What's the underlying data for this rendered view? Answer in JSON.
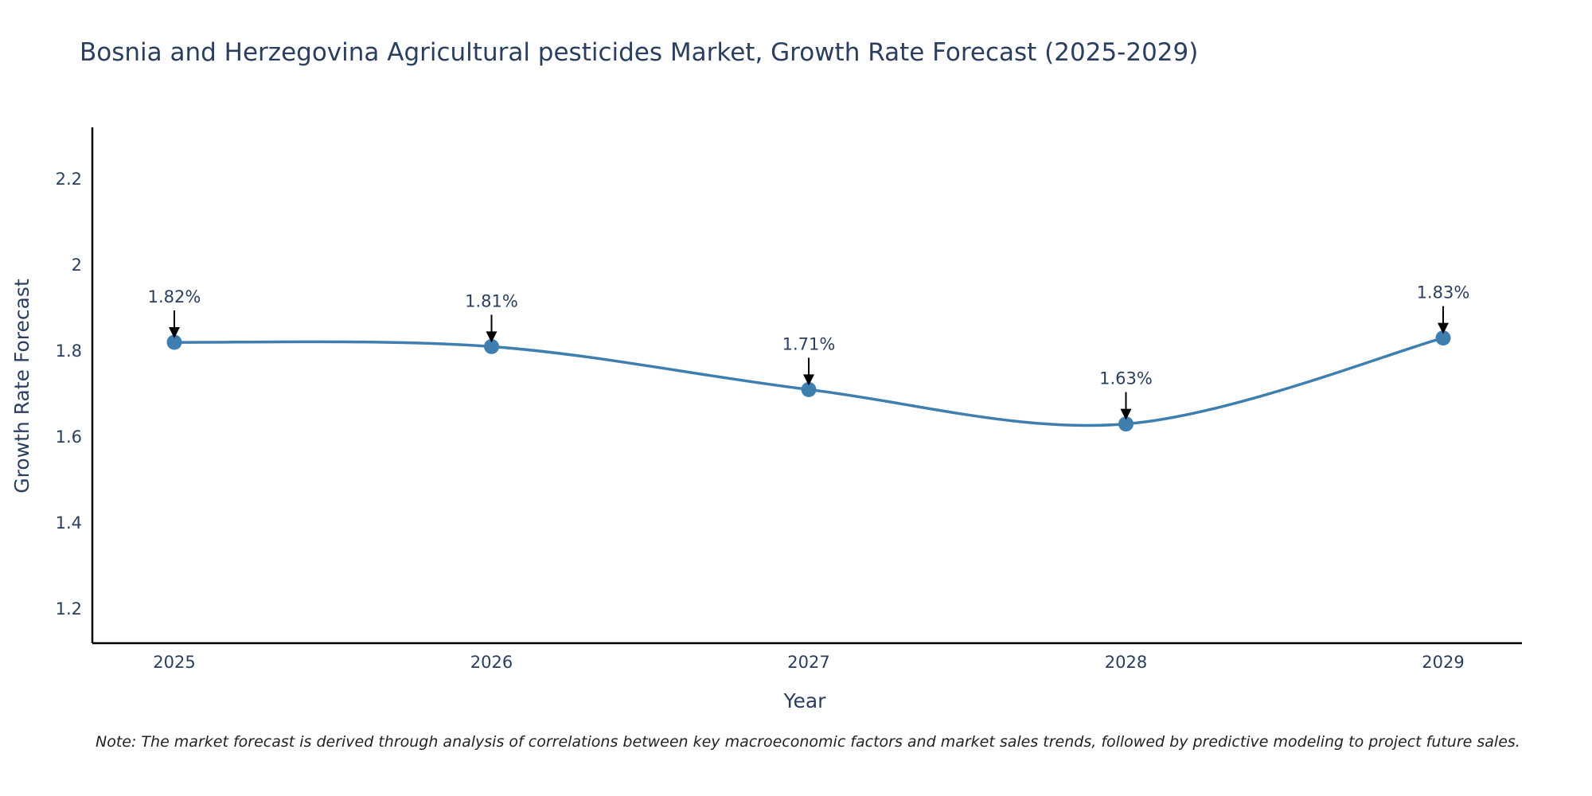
{
  "chart_data": {
    "type": "line",
    "title": "Bosnia and Herzegovina Agricultural pesticides Market, Growth Rate Forecast (2025-2029)",
    "xlabel": "Year",
    "ylabel": "Growth Rate Forecast",
    "categories": [
      "2025",
      "2026",
      "2027",
      "2028",
      "2029"
    ],
    "values": [
      1.82,
      1.81,
      1.71,
      1.63,
      1.83
    ],
    "data_labels": [
      "1.82%",
      "1.81%",
      "1.71%",
      "1.63%",
      "1.83%"
    ],
    "yticks": [
      1.2,
      1.4,
      1.6,
      1.8,
      2,
      2.2
    ],
    "ytick_labels": [
      "1.2",
      "1.4",
      "1.6",
      "1.8",
      "2",
      "2.2"
    ],
    "ylim": [
      1.12,
      2.32
    ],
    "grid": false,
    "line_color": "#3f7fb0",
    "marker_color": "#3f7fb0",
    "arrow_color": "#000000",
    "note": "Note: The market forecast is derived through analysis of correlations between key macroeconomic factors and market sales trends, followed by predictive modeling to project future sales."
  }
}
